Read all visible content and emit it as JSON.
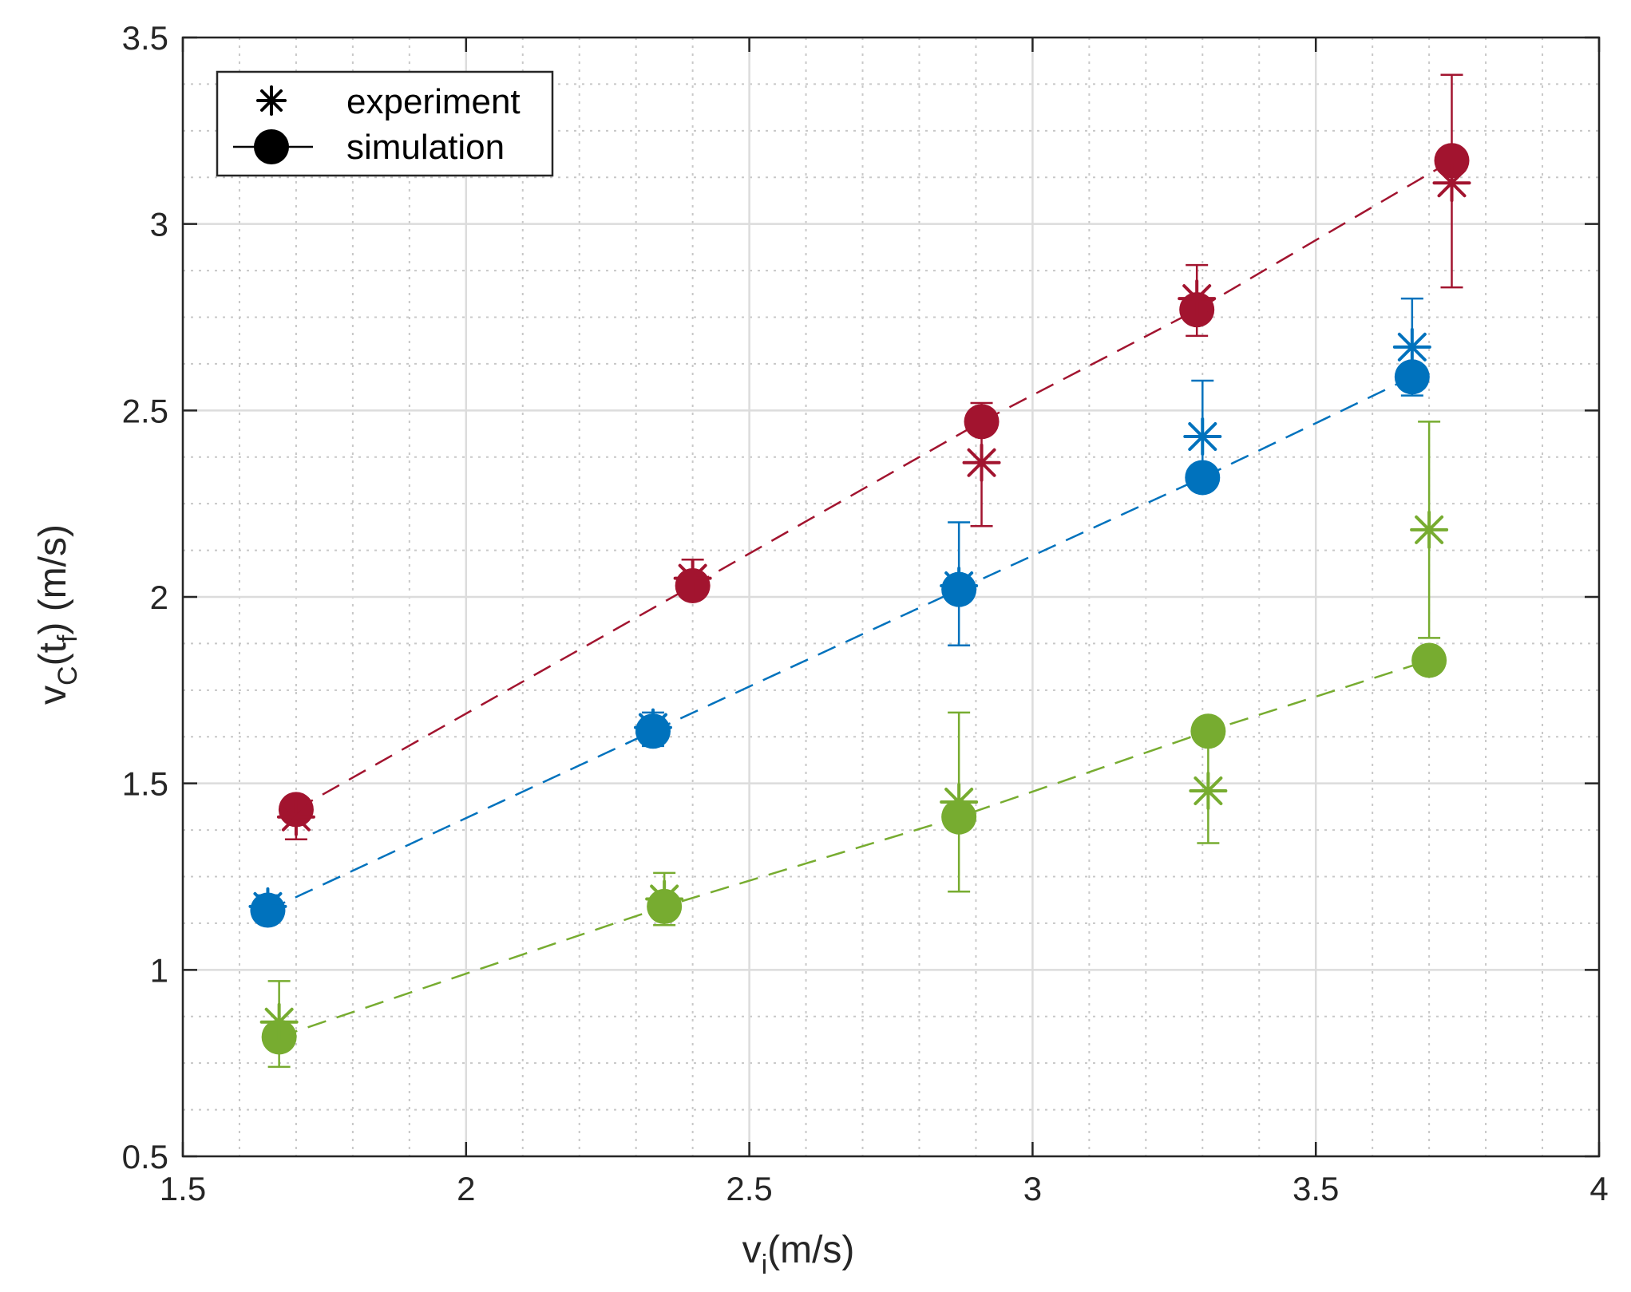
{
  "chart_data": {
    "type": "scatter",
    "title": "",
    "xlabel": {
      "base": "v",
      "sub": "i",
      "suffix": "(m/s)"
    },
    "ylabel": {
      "base": "v",
      "sub1": "C",
      "mid": "(t",
      "sub2": "f",
      "suffix": ") (m/s)"
    },
    "xlim": [
      1.5,
      4
    ],
    "ylim": [
      0.5,
      3.5
    ],
    "xticks": [
      1.5,
      2,
      2.5,
      3,
      3.5,
      4
    ],
    "xtick_labels": [
      "1.5",
      "2",
      "2.5",
      "3",
      "3.5",
      "4"
    ],
    "yticks": [
      0.5,
      1,
      1.5,
      2,
      2.5,
      3,
      3.5
    ],
    "ytick_labels": [
      "0.5",
      "1",
      "1.5",
      "2",
      "2.5",
      "3",
      "3.5"
    ],
    "grid": true,
    "minor_grid": true,
    "legend": {
      "position": "top-left",
      "entries": [
        {
          "label": "experiment",
          "marker": "asterisk"
        },
        {
          "label": "simulation",
          "marker": "filled-circle-line"
        }
      ]
    },
    "series": [
      {
        "name": "red",
        "color": "#A2142F",
        "simulation": {
          "x": [
            1.7,
            2.4,
            2.91,
            3.29,
            3.74
          ],
          "y": [
            1.43,
            2.03,
            2.47,
            2.77,
            3.17
          ]
        },
        "experiment": {
          "x": [
            1.7,
            2.4,
            2.91,
            3.29,
            3.74
          ],
          "y": [
            1.41,
            2.05,
            2.36,
            2.8,
            3.11
          ],
          "err_low": [
            1.35,
            2.0,
            2.19,
            2.7,
            2.83
          ],
          "err_high": [
            1.46,
            2.1,
            2.52,
            2.89,
            3.4
          ]
        }
      },
      {
        "name": "blue",
        "color": "#0072BD",
        "simulation": {
          "x": [
            1.65,
            2.33,
            2.87,
            3.3,
            3.67
          ],
          "y": [
            1.16,
            1.64,
            2.02,
            2.32,
            2.59
          ]
        },
        "experiment": {
          "x": [
            1.65,
            2.33,
            2.87,
            3.3,
            3.67
          ],
          "y": [
            1.17,
            1.65,
            2.03,
            2.43,
            2.67
          ],
          "err_low": [
            1.13,
            1.6,
            1.87,
            2.29,
            2.54
          ],
          "err_high": [
            1.2,
            1.69,
            2.2,
            2.58,
            2.8
          ]
        }
      },
      {
        "name": "green",
        "color": "#77AC30",
        "simulation": {
          "x": [
            1.67,
            2.35,
            2.87,
            3.31,
            3.7
          ],
          "y": [
            0.82,
            1.17,
            1.41,
            1.64,
            1.83
          ]
        },
        "experiment": {
          "x": [
            1.67,
            2.35,
            2.87,
            3.31,
            3.7
          ],
          "y": [
            0.86,
            1.19,
            1.45,
            1.48,
            2.18
          ],
          "err_low": [
            0.74,
            1.12,
            1.21,
            1.34,
            1.89
          ],
          "err_high": [
            0.97,
            1.26,
            1.69,
            1.64,
            2.47
          ]
        }
      }
    ]
  }
}
